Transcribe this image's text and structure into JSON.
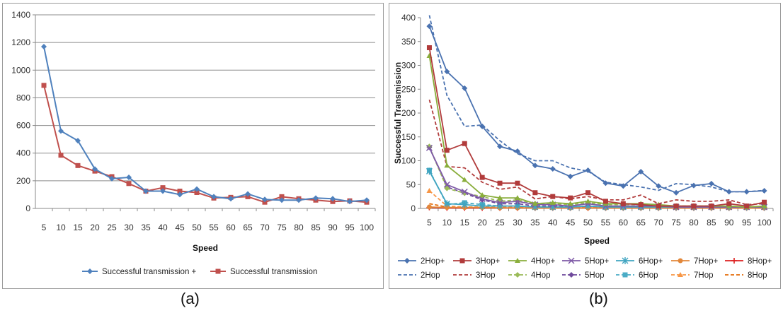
{
  "captions": {
    "a": "(a)",
    "b": "(b)"
  },
  "chart_data": [
    {
      "type": "line",
      "xlabel": "Speed",
      "ylabel": "",
      "x": [
        5,
        10,
        15,
        20,
        25,
        30,
        35,
        40,
        45,
        50,
        55,
        60,
        65,
        70,
        75,
        80,
        85,
        90,
        95,
        100
      ],
      "ylim": [
        0,
        1400
      ],
      "yticks": [
        0,
        200,
        400,
        600,
        800,
        1000,
        1200,
        1400
      ],
      "grid": "horizontal",
      "legend": "bottom",
      "series": [
        {
          "name": "Successful transmission +",
          "color": "#4f81bd",
          "marker": "diamond",
          "dash": false,
          "values": [
            1170,
            560,
            490,
            285,
            215,
            225,
            125,
            125,
            100,
            140,
            85,
            70,
            105,
            65,
            60,
            60,
            75,
            70,
            50,
            60
          ]
        },
        {
          "name": "Successful transmission",
          "color": "#c0504d",
          "marker": "square",
          "dash": false,
          "values": [
            890,
            385,
            310,
            270,
            230,
            180,
            125,
            150,
            125,
            115,
            75,
            80,
            85,
            45,
            85,
            70,
            60,
            50,
            55,
            45
          ]
        }
      ]
    },
    {
      "type": "line",
      "xlabel": "Speed",
      "ylabel": "Successful Transmission",
      "x": [
        5,
        10,
        15,
        20,
        25,
        30,
        35,
        40,
        45,
        50,
        55,
        60,
        65,
        70,
        75,
        80,
        85,
        90,
        95,
        100
      ],
      "ylim": [
        0,
        400
      ],
      "yticks": [
        0,
        50,
        100,
        150,
        200,
        250,
        300,
        350,
        400
      ],
      "grid": "none",
      "legend": "bottom",
      "series": [
        {
          "name": "2Hop+",
          "color": "#4a72b0",
          "marker": "diamond",
          "dash": false,
          "values": [
            382,
            287,
            252,
            172,
            130,
            120,
            90,
            83,
            67,
            80,
            53,
            47,
            77,
            47,
            33,
            48,
            52,
            35,
            35,
            37
          ]
        },
        {
          "name": "3Hop+",
          "color": "#b13b3b",
          "marker": "square",
          "dash": false,
          "values": [
            337,
            122,
            136,
            65,
            53,
            53,
            33,
            25,
            22,
            33,
            15,
            10,
            8,
            5,
            5,
            5,
            5,
            10,
            5,
            13
          ]
        },
        {
          "name": "4Hop+",
          "color": "#8aae3c",
          "marker": "triangle",
          "dash": false,
          "values": [
            320,
            90,
            60,
            28,
            22,
            22,
            10,
            12,
            10,
            15,
            10,
            10,
            10,
            8,
            5,
            5,
            5,
            5,
            3,
            5
          ]
        },
        {
          "name": "5Hop+",
          "color": "#7e5aa6",
          "marker": "x",
          "dash": false,
          "values": [
            127,
            50,
            35,
            20,
            12,
            15,
            8,
            8,
            5,
            10,
            5,
            5,
            5,
            5,
            3,
            3,
            3,
            3,
            3,
            3
          ]
        },
        {
          "name": "6Hop+",
          "color": "#3fa4c0",
          "marker": "star",
          "dash": false,
          "values": [
            78,
            10,
            8,
            5,
            5,
            5,
            3,
            3,
            3,
            5,
            3,
            3,
            3,
            3,
            3,
            3,
            3,
            3,
            3,
            3
          ]
        },
        {
          "name": "7Hop+",
          "color": "#e2873a",
          "marker": "circle",
          "dash": false,
          "values": [
            3,
            2,
            2,
            2,
            1,
            1,
            1,
            1,
            1,
            1,
            1,
            1,
            1,
            1,
            1,
            1,
            1,
            1,
            1,
            1
          ]
        },
        {
          "name": "8Hop+",
          "color": "#dd1f1f",
          "marker": "plus",
          "dash": false,
          "values": [
            2,
            1,
            1,
            1,
            1,
            1,
            1,
            1,
            1,
            1,
            1,
            1,
            1,
            1,
            1,
            1,
            1,
            1,
            1,
            1
          ]
        },
        {
          "name": "2Hop",
          "color": "#4a72b0",
          "marker": "none",
          "dash": true,
          "values": [
            405,
            237,
            172,
            175,
            142,
            115,
            100,
            100,
            85,
            78,
            55,
            50,
            45,
            38,
            52,
            50,
            45,
            35,
            35,
            38
          ]
        },
        {
          "name": "3Hop",
          "color": "#b13b3b",
          "marker": "none",
          "dash": true,
          "values": [
            228,
            88,
            85,
            55,
            40,
            45,
            20,
            25,
            20,
            25,
            18,
            18,
            28,
            10,
            18,
            15,
            15,
            18,
            8,
            10
          ]
        },
        {
          "name": "4Hop",
          "color": "#9bbb59",
          "marker": "diamond",
          "dash": true,
          "values": [
            130,
            42,
            32,
            25,
            15,
            18,
            10,
            10,
            8,
            12,
            8,
            8,
            8,
            5,
            5,
            5,
            5,
            5,
            3,
            3
          ]
        },
        {
          "name": "5Hop",
          "color": "#6f4a9c",
          "marker": "diamond",
          "dash": true,
          "values": [
            128,
            45,
            32,
            18,
            10,
            10,
            5,
            5,
            3,
            5,
            3,
            3,
            3,
            3,
            3,
            3,
            3,
            3,
            3,
            3
          ]
        },
        {
          "name": "6Hop",
          "color": "#4bacc6",
          "marker": "square",
          "dash": true,
          "values": [
            80,
            8,
            12,
            8,
            5,
            5,
            3,
            3,
            3,
            5,
            3,
            3,
            3,
            3,
            3,
            3,
            3,
            3,
            3,
            3
          ]
        },
        {
          "name": "7Hop",
          "color": "#f79646",
          "marker": "triangle",
          "dash": true,
          "values": [
            37,
            5,
            3,
            3,
            3,
            3,
            3,
            3,
            3,
            3,
            3,
            3,
            3,
            3,
            3,
            3,
            3,
            3,
            3,
            3
          ]
        },
        {
          "name": "8Hop",
          "color": "#e46c0a",
          "marker": "none",
          "dash": true,
          "values": [
            10,
            3,
            3,
            2,
            2,
            2,
            2,
            2,
            2,
            2,
            2,
            2,
            2,
            2,
            2,
            2,
            2,
            2,
            2,
            2
          ]
        }
      ]
    }
  ]
}
